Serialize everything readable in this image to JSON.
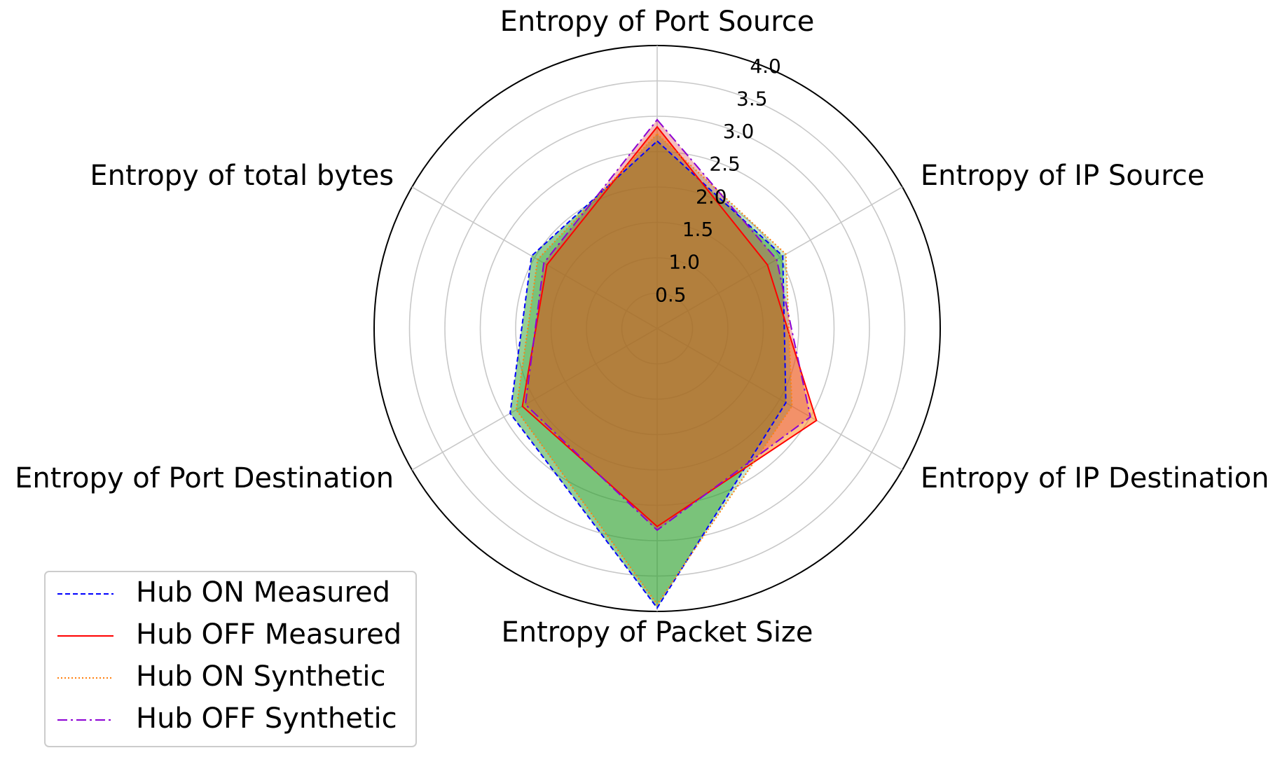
{
  "chart_data": {
    "type": "radar",
    "axes": [
      "Entropy of Port Source",
      "Entropy of IP Source",
      "Entropy of IP Destination",
      "Entropy of Packet Size",
      "Entropy of Port Destination",
      "Entropy of total bytes"
    ],
    "rticks": [
      "0.5",
      "1.0",
      "1.5",
      "2.0",
      "2.5",
      "3.0",
      "3.5",
      "4.0"
    ],
    "rlim": [
      0,
      4.0
    ],
    "grid": true,
    "legend_position": "lower-left",
    "series": [
      {
        "name": "Hub ON Measured",
        "values": [
          2.65,
          2.05,
          2.1,
          3.95,
          2.4,
          2.05
        ],
        "color": "#0000ff",
        "dash": "dashed",
        "fill": "#2ca02c",
        "fill_opacity": 0.5
      },
      {
        "name": "Hub OFF Measured",
        "values": [
          2.85,
          1.8,
          2.6,
          2.8,
          2.2,
          1.8
        ],
        "color": "#ff0000",
        "dash": "solid",
        "fill": "#ff7f0e",
        "fill_opacity": 0.5
      },
      {
        "name": "Hub ON Synthetic",
        "values": [
          2.75,
          2.1,
          2.2,
          3.9,
          2.3,
          1.95
        ],
        "color": "#ff7f0e",
        "dash": "dotted",
        "fill": "#2ca02c",
        "fill_opacity": 0.25
      },
      {
        "name": "Hub OFF Synthetic",
        "values": [
          2.95,
          1.95,
          2.5,
          2.85,
          2.15,
          1.85
        ],
        "color": "#8c00d4",
        "dash": "dashdot",
        "fill": "#d62728",
        "fill_opacity": 0.3
      }
    ]
  }
}
